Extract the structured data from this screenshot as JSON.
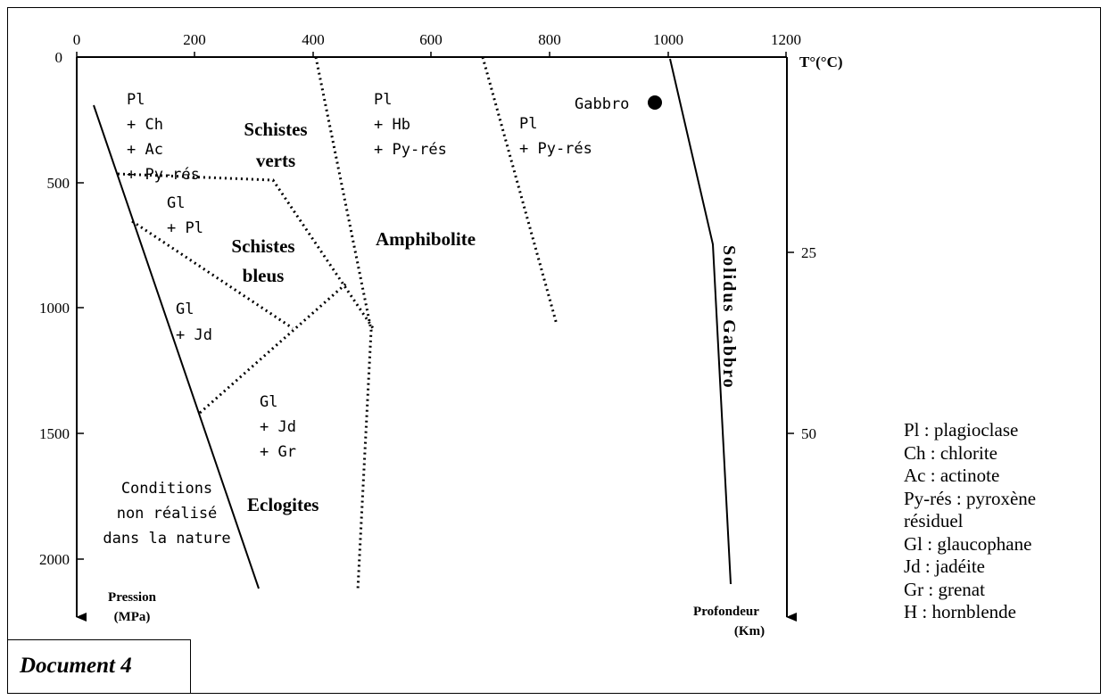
{
  "temperature_axis": {
    "label": "T°(°C)",
    "ticks": [
      "0",
      "200",
      "400",
      "600",
      "800",
      "1000",
      "1200"
    ]
  },
  "pressure_axis": {
    "label_line1": "Pression",
    "label_line2": "(MPa)",
    "ticks": [
      "0",
      "500",
      "1000",
      "1500",
      "2000"
    ]
  },
  "depth_axis": {
    "label_line1": "Profondeur",
    "label_line2": "(Km)",
    "ticks": [
      "25",
      "50"
    ]
  },
  "facies": {
    "schistes_verts_1": "Schistes",
    "schistes_verts_2": "verts",
    "schistes_bleus_1": "Schistes",
    "schistes_bleus_2": "bleus",
    "amphibolite": "Amphibolite",
    "eclogites": "Eclogites"
  },
  "assemblages": {
    "green_1": "Pl",
    "green_2": "+ Ch",
    "green_3": "+ Ac",
    "green_4": "+ Py-rés",
    "blue_1": "Gl",
    "blue_2": "+ Pl",
    "jd_1": "Gl",
    "jd_2": "+ Jd",
    "eclo_1": "Gl",
    "eclo_2": "+ Jd",
    "eclo_3": "+ Gr",
    "amph_1": "Pl",
    "amph_2": "+ Hb",
    "amph_3": "+ Py-rés",
    "granul_1": "Pl",
    "granul_2": "+ Py-rés"
  },
  "conditions": {
    "line1": "Conditions",
    "line2": "non réalisé",
    "line3": "dans la nature"
  },
  "gabbro_point": {
    "label": "Gabbro",
    "temperature_c": 980,
    "pressure_mpa": 180
  },
  "solidus_label": "Solidus Gabbro",
  "document_title": "Document 4",
  "legend": [
    "Pl : plagioclase",
    "Ch : chlorite",
    "Ac : actinote",
    "Py-rés : pyroxène",
    " résiduel",
    "Gl : glaucophane",
    "Jd : jadéite",
    "Gr : grenat",
    "H : hornblende"
  ]
}
